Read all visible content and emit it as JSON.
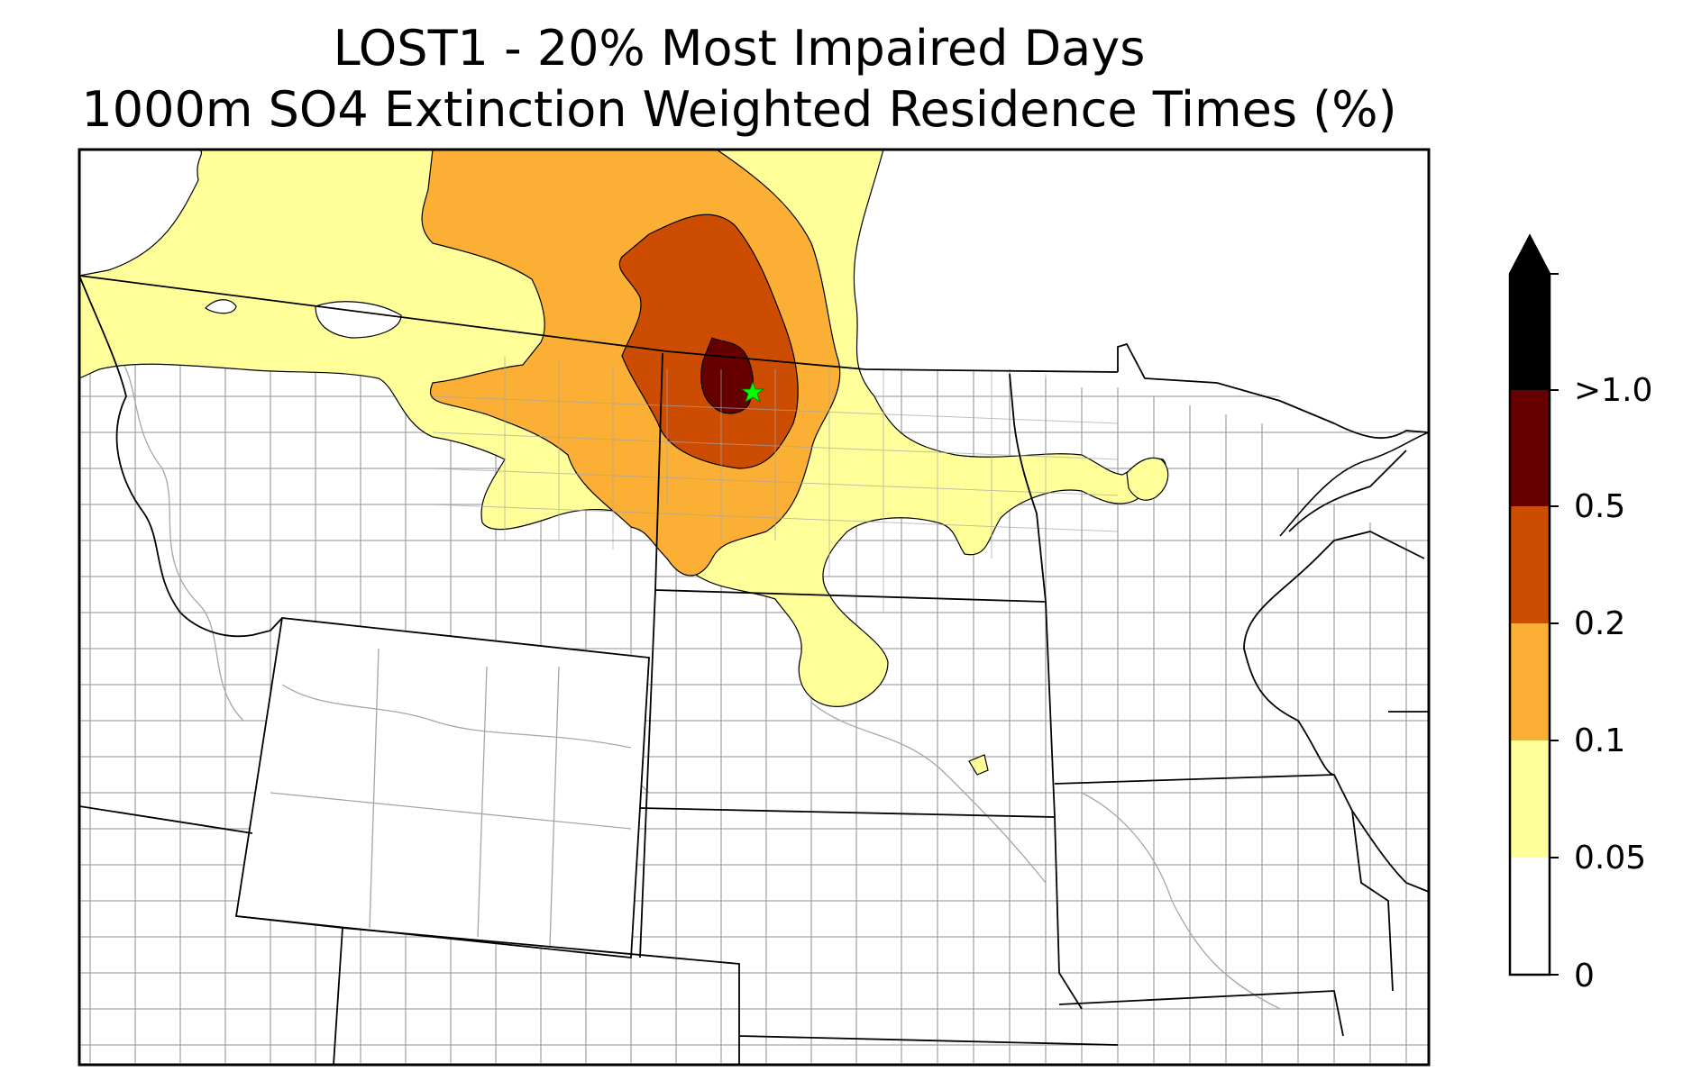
{
  "title": {
    "line1": "LOST1 - 20% Most Impaired Days",
    "line2": "1000m SO4 Extinction Weighted Residence Times (%)"
  },
  "colorbar": {
    "levels": [
      {
        "label": "0",
        "value": 0,
        "color": "#ffffff"
      },
      {
        "label": "0.05",
        "value": 0.05,
        "color": "#ffff99"
      },
      {
        "label": "0.1",
        "value": 0.1,
        "color": "#fbb035"
      },
      {
        "label": "0.2",
        "value": 0.2,
        "color": "#cc4c02"
      },
      {
        "label": "0.5",
        "value": 0.5,
        "color": "#660000"
      },
      {
        "label": ">1.0",
        "value": 1.0,
        "color": "#000000"
      }
    ],
    "extend": "max"
  },
  "colors": {
    "yellow": "#ffff99",
    "orange": "#fbb035",
    "dark_orange": "#cc4c02",
    "maroon": "#660000",
    "county_lines": "#a6a6a6",
    "state_lines": "#000000",
    "site_marker": "#00ff00"
  },
  "site_marker": {
    "icon": "star-icon",
    "site": "LOST1"
  }
}
